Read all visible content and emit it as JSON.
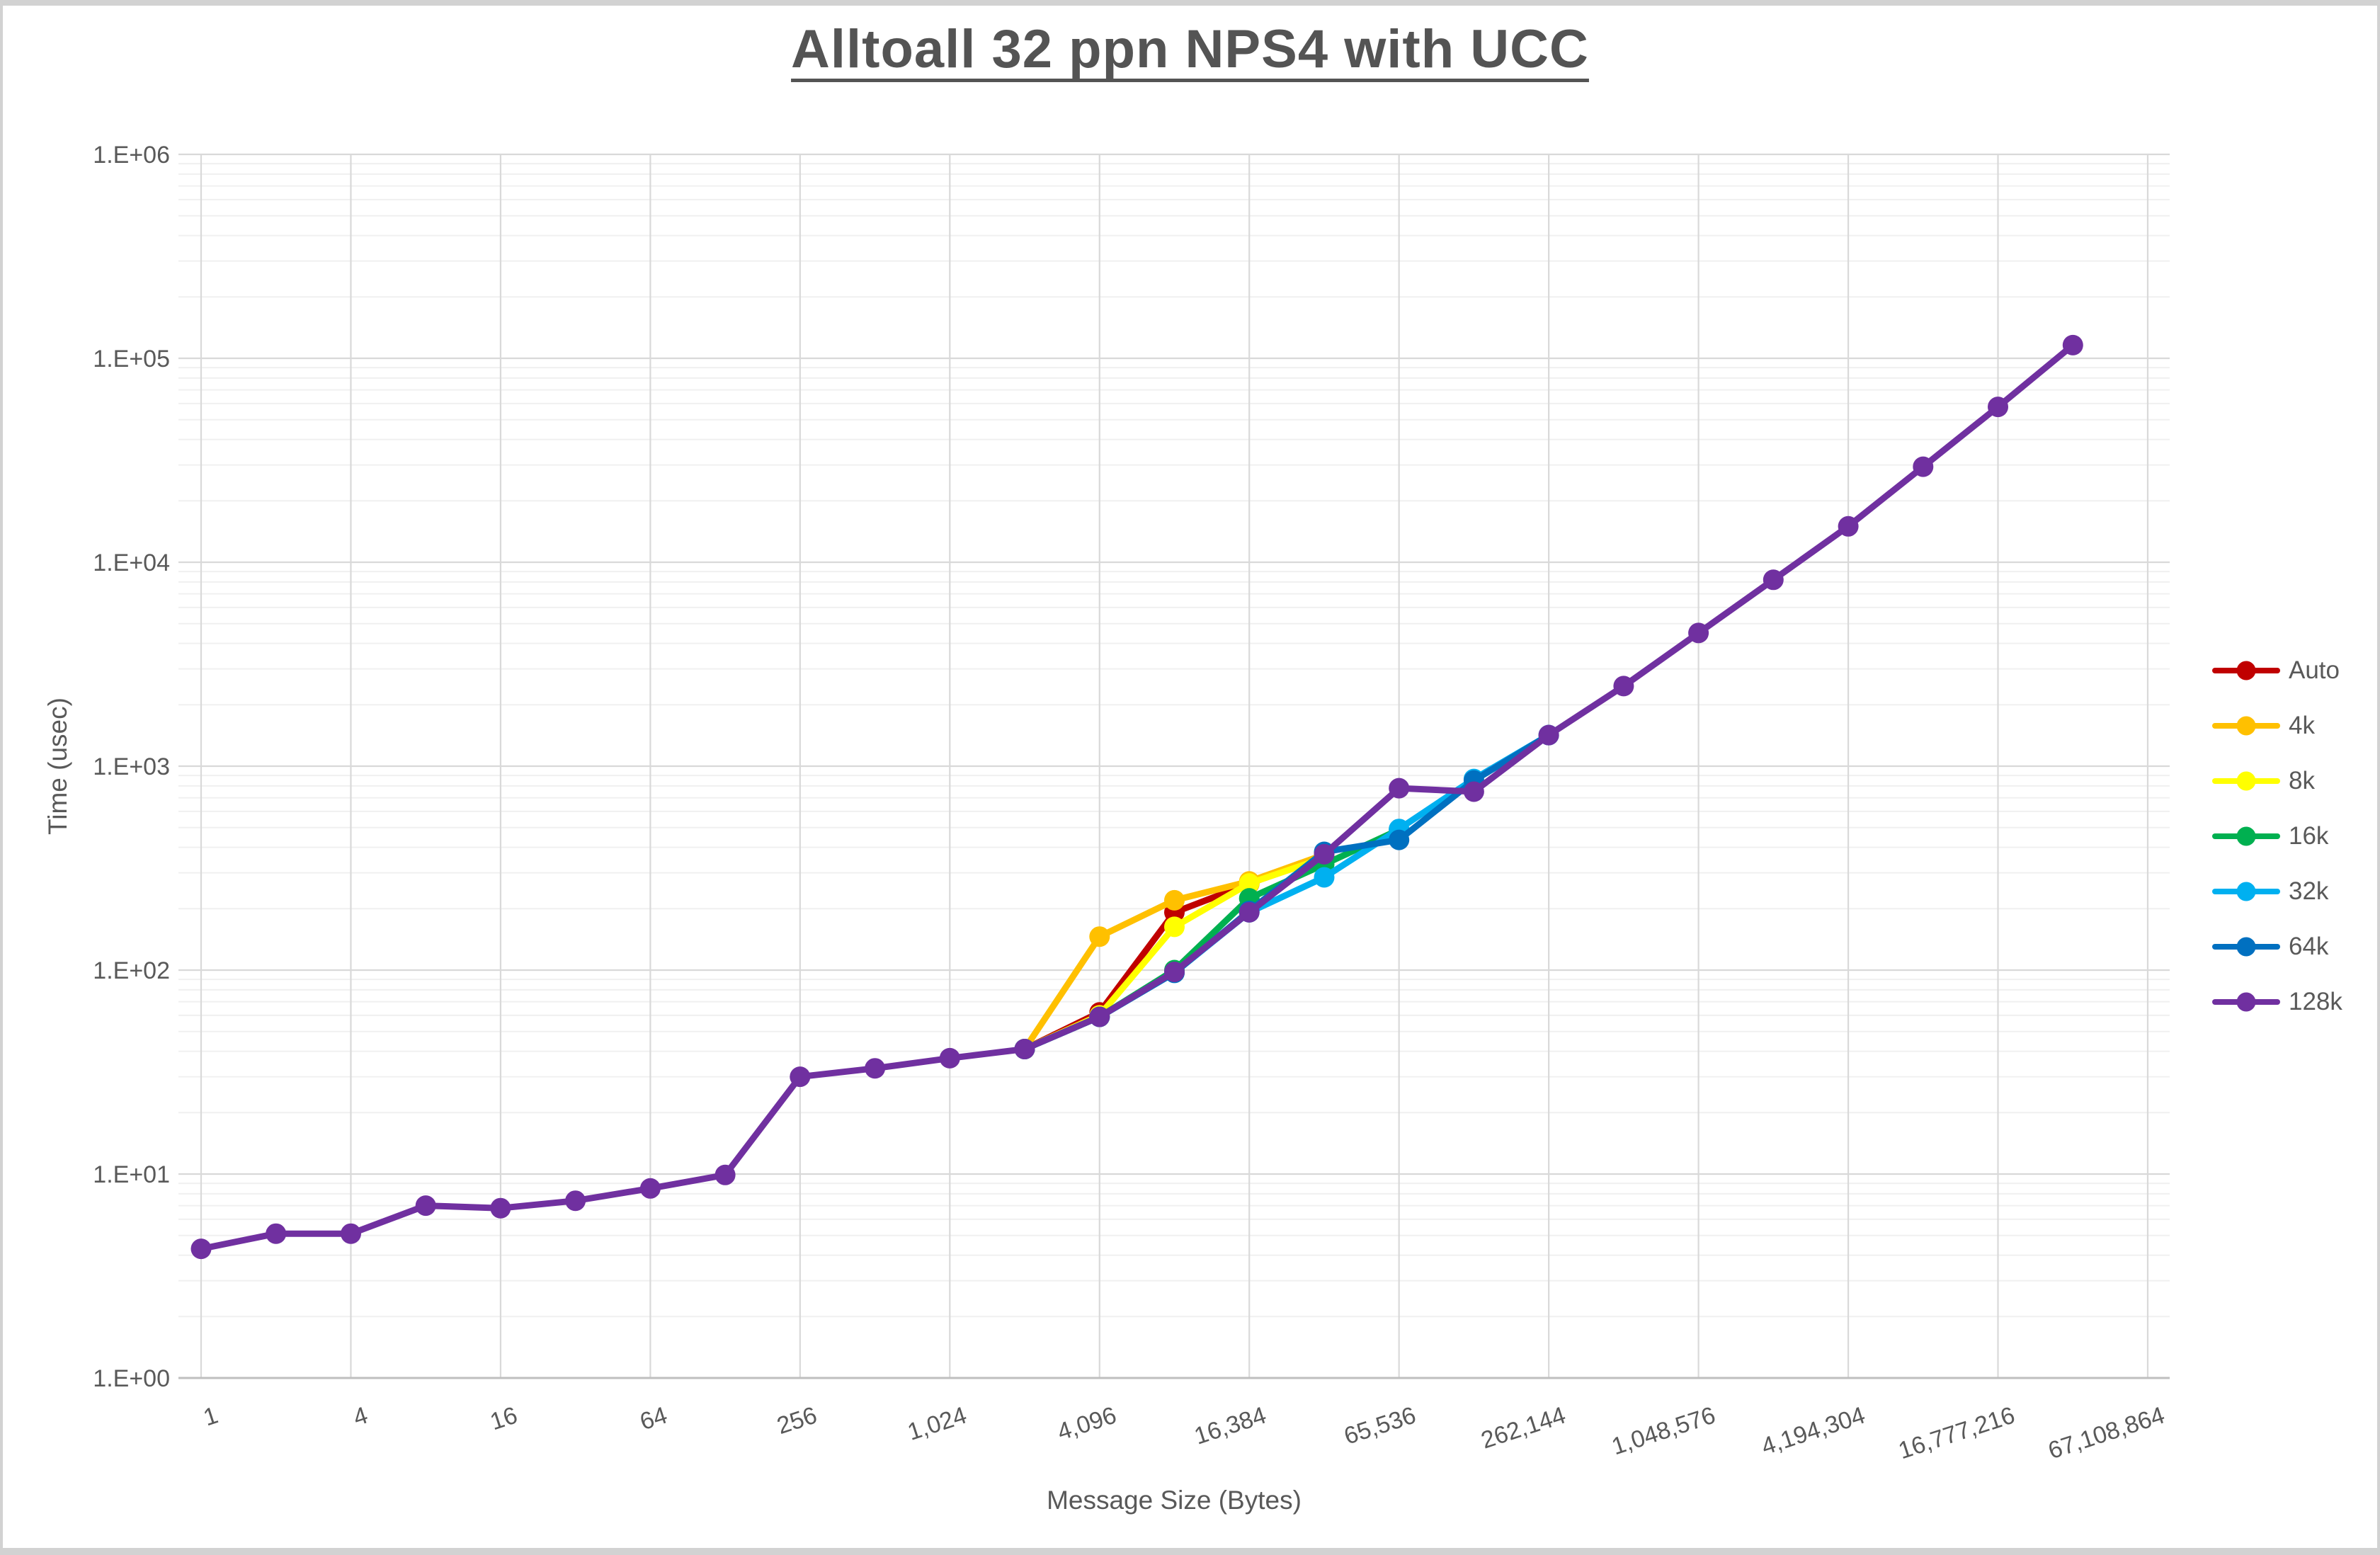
{
  "chart_data": {
    "type": "line",
    "title": "Alltoall 32 ppn NPS4 with UCC",
    "xlabel": "Message Size (Bytes)",
    "ylabel": "Time (usec)",
    "x_scale": "log4-ticks, data at powers of 2",
    "y_scale": "log10",
    "xlim": [
      1,
      67108864
    ],
    "ylim": [
      1,
      1000000
    ],
    "grid": true,
    "legend_position": "right",
    "x_tick_values": [
      1,
      4,
      16,
      64,
      256,
      1024,
      4096,
      16384,
      65536,
      262144,
      1048576,
      4194304,
      16777216,
      67108864
    ],
    "x_tick_labels": [
      "1",
      "4",
      "16",
      "64",
      "256",
      "1,024",
      "4,096",
      "16,384",
      "65,536",
      "262,144",
      "1,048,576",
      "4,194,304",
      "16,777,216",
      "67,108,864"
    ],
    "y_tick_labels": [
      "1.E+00",
      "1.E+01",
      "1.E+02",
      "1.E+03",
      "1.E+04",
      "1.E+05",
      "1.E+06"
    ],
    "series": [
      {
        "name": "Auto",
        "color": "#C00000",
        "points": [
          [
            2048,
            41
          ],
          [
            4096,
            62
          ],
          [
            8192,
            192
          ],
          [
            16384,
            265
          ],
          [
            32768,
            368
          ]
        ]
      },
      {
        "name": "4k",
        "color": "#FFC000",
        "points": [
          [
            2048,
            41
          ],
          [
            4096,
            146
          ],
          [
            8192,
            220
          ],
          [
            16384,
            272
          ],
          [
            32768,
            368
          ]
        ]
      },
      {
        "name": "8k",
        "color": "#FFFF00",
        "points": [
          [
            2048,
            41
          ],
          [
            4096,
            60
          ],
          [
            8192,
            163
          ],
          [
            16384,
            266
          ],
          [
            32768,
            355
          ]
        ]
      },
      {
        "name": "16k",
        "color": "#00B050",
        "points": [
          [
            2048,
            41
          ],
          [
            4096,
            59
          ],
          [
            8192,
            100
          ],
          [
            16384,
            225
          ],
          [
            32768,
            330
          ],
          [
            65536,
            488
          ]
        ]
      },
      {
        "name": "32k",
        "color": "#00B0F0",
        "points": [
          [
            2048,
            41
          ],
          [
            4096,
            59
          ],
          [
            8192,
            97
          ],
          [
            16384,
            192
          ],
          [
            32768,
            285
          ],
          [
            65536,
            492
          ],
          [
            131072,
            865
          ],
          [
            262144,
            1420
          ]
        ]
      },
      {
        "name": "64k",
        "color": "#0070C0",
        "points": [
          [
            2048,
            41
          ],
          [
            4096,
            59
          ],
          [
            8192,
            97
          ],
          [
            16384,
            195
          ],
          [
            32768,
            380
          ],
          [
            65536,
            435
          ],
          [
            131072,
            850
          ],
          [
            262144,
            1420
          ]
        ]
      },
      {
        "name": "128k",
        "color": "#7030A0",
        "points": [
          [
            1,
            4.3
          ],
          [
            2,
            5.1
          ],
          [
            4,
            5.1
          ],
          [
            8,
            7.0
          ],
          [
            16,
            6.8
          ],
          [
            32,
            7.4
          ],
          [
            64,
            8.5
          ],
          [
            128,
            9.9
          ],
          [
            256,
            30
          ],
          [
            512,
            33
          ],
          [
            1024,
            37
          ],
          [
            2048,
            41
          ],
          [
            4096,
            59
          ],
          [
            8192,
            98
          ],
          [
            16384,
            192
          ],
          [
            32768,
            370
          ],
          [
            65536,
            780
          ],
          [
            131072,
            750
          ],
          [
            262144,
            1420
          ],
          [
            524288,
            2470
          ],
          [
            1048576,
            4500
          ],
          [
            2097152,
            8200
          ],
          [
            4194304,
            15000
          ],
          [
            8388608,
            29400
          ],
          [
            16777216,
            57800
          ],
          [
            33554432,
            116000
          ]
        ]
      }
    ],
    "colors": {
      "grid_major": "#d9d9d9",
      "grid_minor": "#f0f0f0",
      "axis_line": "#bfbfbf",
      "tick_text": "#595959",
      "title_text": "#545454"
    }
  }
}
